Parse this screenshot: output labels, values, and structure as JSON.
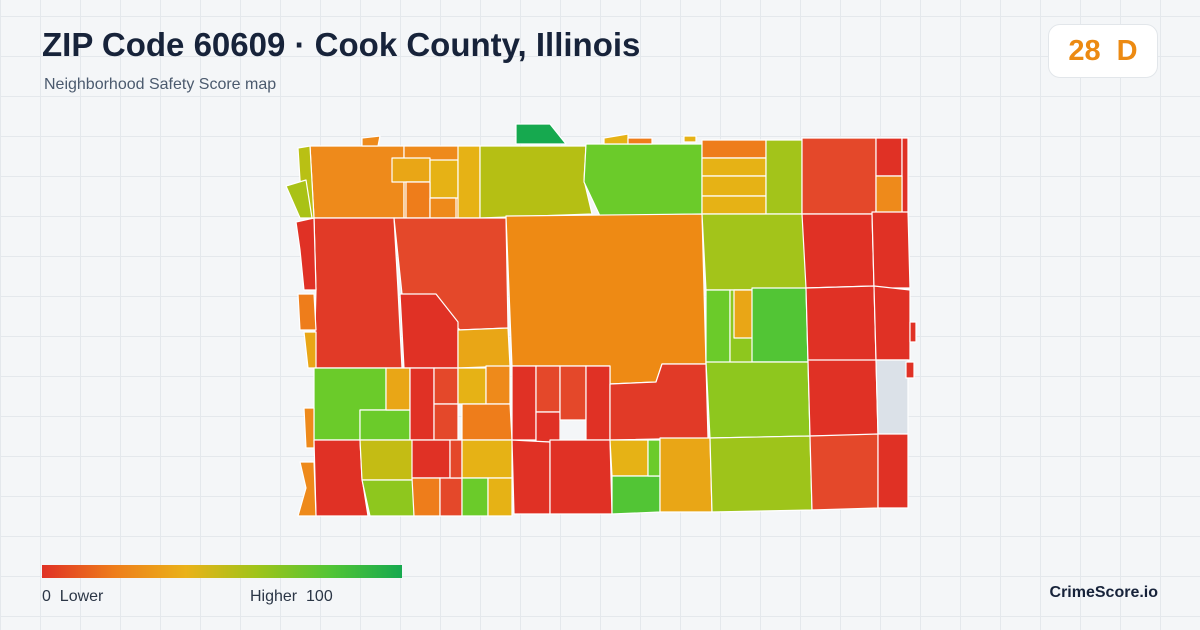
{
  "header": {
    "title": "ZIP Code 60609 · Cook County, Illinois",
    "subtitle": "Neighborhood Safety Score map"
  },
  "score_badge": {
    "score": "28",
    "grade": "D",
    "color": "#ec8a12"
  },
  "legend": {
    "low_label": "0  Lower",
    "high_label": "Higher  100",
    "min": 0,
    "max": 100,
    "colors": [
      "#e03125",
      "#ee7d1b",
      "#eab21a",
      "#9ec41a",
      "#52c535",
      "#16a94f"
    ]
  },
  "map": {
    "no_data_color": "#dbe1e8",
    "border_color": "#ffffff"
  },
  "brand": "CrimeScore.io"
}
